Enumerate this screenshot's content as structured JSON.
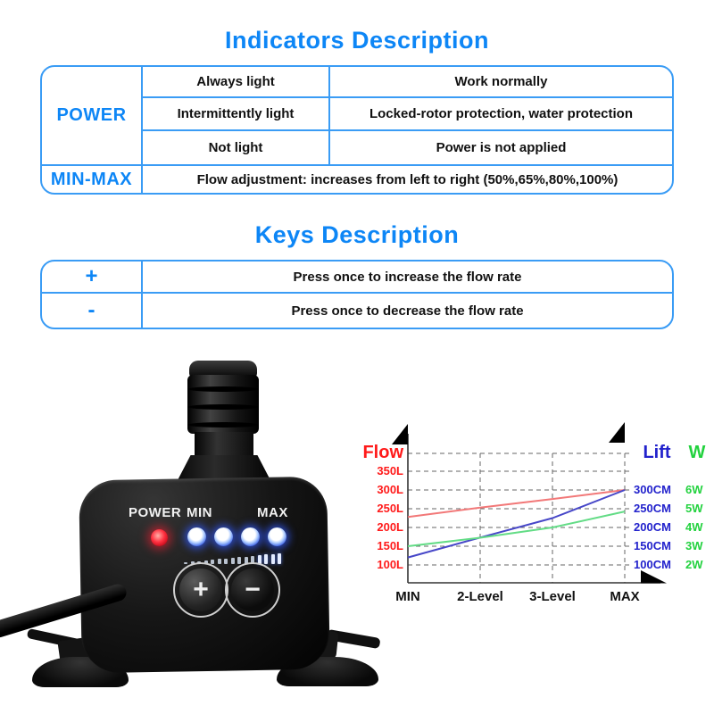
{
  "page": {
    "accent_color": "#0d86f6",
    "table_border_color": "#3a9cf5"
  },
  "indicators": {
    "title": "Indicators Description",
    "power_label": "POWER",
    "minmax_label": "MIN-MAX",
    "rows": {
      "always_state": "Always light",
      "always_meaning": "Work normally",
      "intermittent_state": "Intermittently light",
      "intermittent_meaning": "Locked-rotor protection, water protection",
      "notlight_state": "Not light",
      "notlight_meaning": "Power is not applied",
      "minmax_meaning": "Flow adjustment: increases from left to right (50%,65%,80%,100%)"
    }
  },
  "keys": {
    "title": "Keys Description",
    "plus_key": "+",
    "plus_desc": "Press once to increase the flow rate",
    "minus_key": "-",
    "minus_desc": "Press once to decrease the flow rate"
  },
  "pump": {
    "power_label": "POWER",
    "min_label": "MIN",
    "max_label": "MAX",
    "plus_button": "+",
    "minus_button": "−",
    "level_led_count": 4,
    "meter_tick_count": 15,
    "power_led_color": "#ff2233",
    "level_led_color": "#2a50e0"
  },
  "chart_data": {
    "type": "line",
    "categories": [
      "MIN",
      "2-Level",
      "3-Level",
      "MAX"
    ],
    "series": [
      {
        "name": "Flow",
        "unit": "L",
        "color": "#f27878",
        "values": [
          228,
          253,
          276,
          300
        ]
      },
      {
        "name": "Lift",
        "unit": "CM",
        "color": "#4747c8",
        "values": [
          120,
          173,
          225,
          300
        ]
      },
      {
        "name": "W",
        "unit": "W",
        "color": "#63dc86",
        "values": [
          3.0,
          3.45,
          4.0,
          4.85
        ],
        "scale_to_left": 50
      }
    ],
    "left_axis_label": "Flow",
    "right_axis_label_lift": "Lift",
    "right_axis_label_w": "W",
    "left_ticks": [
      "350L",
      "300L",
      "250L",
      "200L",
      "150L",
      "100L"
    ],
    "left_tick_values": [
      350,
      300,
      250,
      200,
      150,
      100
    ],
    "lift_ticks": [
      "300CM",
      "250CM",
      "200CM",
      "150CM",
      "100CM"
    ],
    "w_ticks": [
      "6W",
      "5W",
      "4W",
      "3W",
      "2W"
    ],
    "ylim_left": [
      100,
      400
    ],
    "grid": "dashed",
    "legend_position": "axis-labels"
  }
}
